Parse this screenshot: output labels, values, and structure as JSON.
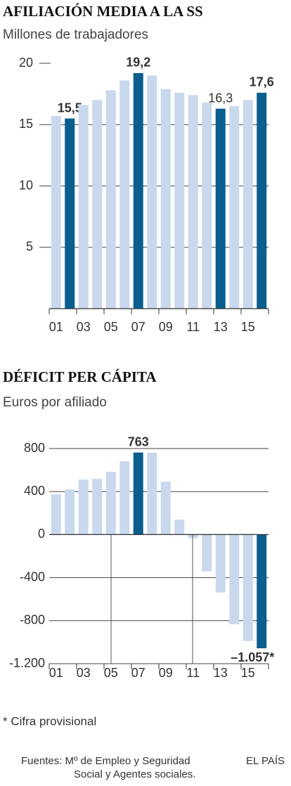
{
  "chart_data": [
    {
      "type": "bar",
      "title": "AFILIACIÓN MEDIA A LA SS",
      "subtitle": "Millones de trabajadores",
      "categories": [
        "01",
        null,
        "03",
        null,
        "05",
        null,
        "07",
        null,
        "09",
        null,
        "11",
        null,
        "13",
        null,
        "15",
        null
      ],
      "series": [
        {
          "values": [
            15.7,
            15.5,
            16.6,
            17.0,
            17.8,
            18.6,
            19.2,
            19.0,
            17.9,
            17.6,
            17.4,
            16.8,
            16.3,
            16.5,
            17.0,
            17.6
          ],
          "value_labels": [
            null,
            "15,5",
            null,
            null,
            null,
            null,
            "19,2",
            null,
            null,
            null,
            null,
            null,
            "16,3",
            null,
            null,
            "17,6"
          ],
          "colors": [
            "#c9d8ec",
            "#0a5f8f",
            "#c9d8ec",
            "#c9d8ec",
            "#c9d8ec",
            "#c9d8ec",
            "#0a5f8f",
            "#c9d8ec",
            "#c9d8ec",
            "#c9d8ec",
            "#c9d8ec",
            "#c9d8ec",
            "#0a5f8f",
            "#c9d8ec",
            "#c9d8ec",
            "#0a5f8f"
          ]
        }
      ],
      "ylim": [
        0,
        20
      ],
      "yticks": [
        5,
        10,
        15,
        20
      ],
      "grid": true
    },
    {
      "type": "bar",
      "title": "DÉFICIT PER CÁPITA",
      "subtitle": "Euros por afiliado",
      "categories": [
        "01",
        null,
        "03",
        null,
        "05",
        null,
        "07",
        null,
        "09",
        null,
        "11",
        null,
        "13",
        null,
        "15",
        null
      ],
      "series": [
        {
          "values": [
            374,
            420,
            511,
            518,
            584,
            682,
            763,
            760,
            492,
            138,
            -33,
            -341,
            -538,
            -833,
            -990,
            -1057
          ],
          "value_labels": [
            null,
            null,
            null,
            null,
            null,
            null,
            "763",
            null,
            null,
            null,
            null,
            null,
            null,
            null,
            null,
            "–1.057*"
          ],
          "colors": [
            "#c9d8ec",
            "#c9d8ec",
            "#c9d8ec",
            "#c9d8ec",
            "#c9d8ec",
            "#c9d8ec",
            "#0a5f8f",
            "#c9d8ec",
            "#c9d8ec",
            "#c9d8ec",
            "#c9d8ec",
            "#c9d8ec",
            "#c9d8ec",
            "#c9d8ec",
            "#c9d8ec",
            "#0a5f8f"
          ]
        }
      ],
      "ylim": [
        -1200,
        800
      ],
      "yticks": [
        {
          "value": -1200,
          "label": "-1.200"
        },
        {
          "value": -800,
          "label": "-800"
        },
        {
          "value": -400,
          "label": "-400"
        },
        0,
        400,
        800
      ],
      "grid": true
    }
  ],
  "footnote": "* Cifra provisional",
  "source": "Fuentes: Mº de Empleo y Seguridad Social y Agentes sociales.",
  "brand": "EL PAÍS"
}
